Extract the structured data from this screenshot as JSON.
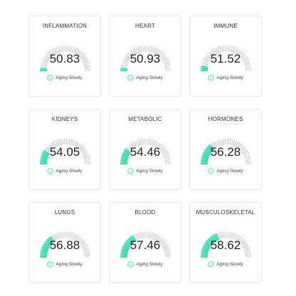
{
  "colors": {
    "accent": "#3ddbb4",
    "tick_inactive": "#bdbdbd",
    "card_border": "#e6e6e6"
  },
  "status_icon": "smiley-face-icon",
  "cards": [
    {
      "title": "INFLAMMATION",
      "value": "50.83",
      "status": "Aging Slowly",
      "fill": 0.03
    },
    {
      "title": "HEART",
      "value": "50.93",
      "status": "Aging Slowly",
      "fill": 0.04
    },
    {
      "title": "IMMUNE",
      "value": "51.52",
      "status": "Aging Slowly",
      "fill": 0.06
    },
    {
      "title": "KIDNEYS",
      "value": "54.05",
      "status": "Aging Slowly",
      "fill": 0.18
    },
    {
      "title": "METABOLIC",
      "value": "54.46",
      "status": "Aging Slowly",
      "fill": 0.2
    },
    {
      "title": "HORMONES",
      "value": "56.28",
      "status": "Aging Slowly",
      "fill": 0.27
    },
    {
      "title": "LUNGS",
      "value": "56.88",
      "status": "Aging Slowly",
      "fill": 0.3
    },
    {
      "title": "BLOOD",
      "value": "57.46",
      "status": "Aging Slowly",
      "fill": 0.33
    },
    {
      "title": "MUSCULOSKELETAL",
      "value": "58.62",
      "status": "Aging Slowly",
      "fill": 0.38
    }
  ]
}
